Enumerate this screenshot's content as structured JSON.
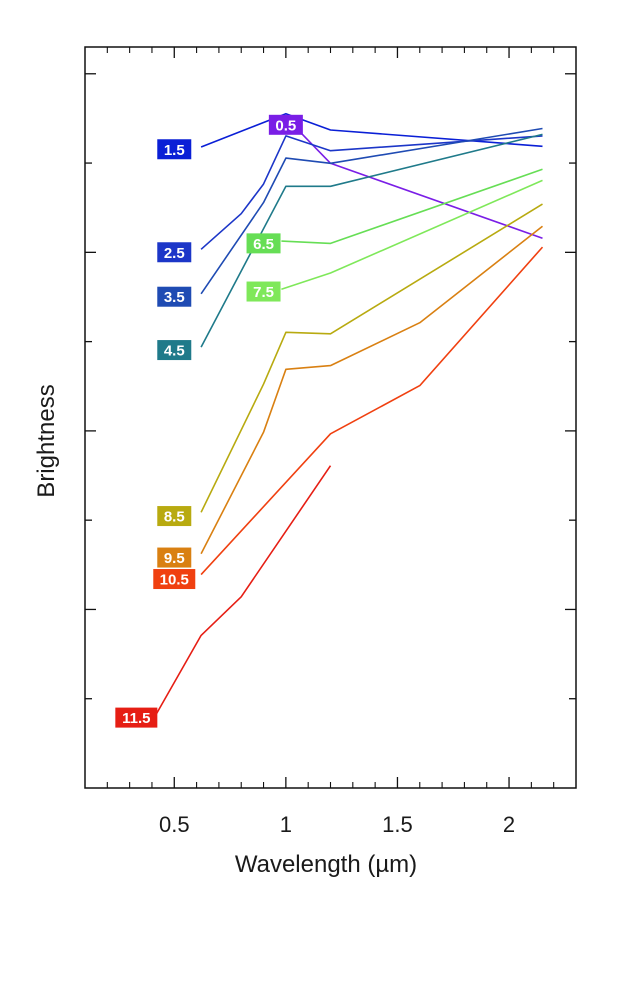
{
  "chart_data": {
    "type": "line",
    "title": "",
    "xlabel": "Wavelength (µm)",
    "ylabel": "Brightness",
    "xlim": [
      0.1,
      2.3
    ],
    "ylim": [
      0,
      1
    ],
    "xticks": [
      0.5,
      1,
      1.5,
      2
    ],
    "xtick_labels": [
      "0.5",
      "1",
      "1.5",
      "2"
    ],
    "yticks_count": 8,
    "grid": false,
    "series": [
      {
        "name": "0.5",
        "color": "#7a1ee6",
        "label_at": [
          1.0,
          0.895
        ],
        "points": [
          [
            1.0,
            0.905
          ],
          [
            1.2,
            0.843
          ],
          [
            2.15,
            0.742
          ]
        ]
      },
      {
        "name": "1.5",
        "color": "#0a1fd6",
        "label_at": [
          0.5,
          0.862
        ],
        "points": [
          [
            0.62,
            0.865
          ],
          [
            1.0,
            0.91
          ],
          [
            1.2,
            0.888
          ],
          [
            2.15,
            0.866
          ]
        ]
      },
      {
        "name": "2.5",
        "color": "#1c36c8",
        "label_at": [
          0.5,
          0.723
        ],
        "points": [
          [
            0.62,
            0.727
          ],
          [
            0.8,
            0.775
          ],
          [
            0.9,
            0.815
          ],
          [
            1.0,
            0.88
          ],
          [
            1.2,
            0.86
          ],
          [
            2.15,
            0.88
          ]
        ]
      },
      {
        "name": "3.5",
        "color": "#1f4bb3",
        "label_at": [
          0.5,
          0.663
        ],
        "points": [
          [
            0.62,
            0.667
          ],
          [
            0.9,
            0.79
          ],
          [
            1.0,
            0.85
          ],
          [
            1.2,
            0.843
          ],
          [
            2.15,
            0.89
          ]
        ]
      },
      {
        "name": "4.5",
        "color": "#1f7a8a",
        "label_at": [
          0.5,
          0.591
        ],
        "points": [
          [
            0.62,
            0.595
          ],
          [
            1.0,
            0.812
          ],
          [
            1.2,
            0.812
          ],
          [
            2.15,
            0.882
          ]
        ]
      },
      {
        "name": "6.5",
        "color": "#66de55",
        "label_at": [
          0.9,
          0.735
        ],
        "points": [
          [
            0.98,
            0.738
          ],
          [
            1.2,
            0.735
          ],
          [
            2.15,
            0.835
          ]
        ]
      },
      {
        "name": "7.5",
        "color": "#7fe85a",
        "label_at": [
          0.9,
          0.67
        ],
        "points": [
          [
            0.98,
            0.673
          ],
          [
            1.2,
            0.695
          ],
          [
            2.15,
            0.82
          ]
        ]
      },
      {
        "name": "8.5",
        "color": "#b8aa10",
        "label_at": [
          0.5,
          0.367
        ],
        "points": [
          [
            0.62,
            0.372
          ],
          [
            0.9,
            0.545
          ],
          [
            1.0,
            0.615
          ],
          [
            1.2,
            0.613
          ],
          [
            2.15,
            0.788
          ]
        ]
      },
      {
        "name": "9.5",
        "color": "#d98012",
        "label_at": [
          0.5,
          0.311
        ],
        "points": [
          [
            0.62,
            0.316
          ],
          [
            0.9,
            0.48
          ],
          [
            1.0,
            0.565
          ],
          [
            1.2,
            0.57
          ],
          [
            1.6,
            0.628
          ],
          [
            2.15,
            0.758
          ]
        ]
      },
      {
        "name": "10.5",
        "color": "#f04010",
        "label_at": [
          0.5,
          0.282
        ],
        "points": [
          [
            0.62,
            0.288
          ],
          [
            1.2,
            0.478
          ],
          [
            1.6,
            0.543
          ],
          [
            2.15,
            0.73
          ]
        ]
      },
      {
        "name": "11.5",
        "color": "#e61e14",
        "label_at": [
          0.33,
          0.095
        ],
        "points": [
          [
            0.42,
            0.1
          ],
          [
            0.62,
            0.206
          ],
          [
            0.8,
            0.258
          ],
          [
            1.2,
            0.435
          ]
        ]
      }
    ]
  }
}
